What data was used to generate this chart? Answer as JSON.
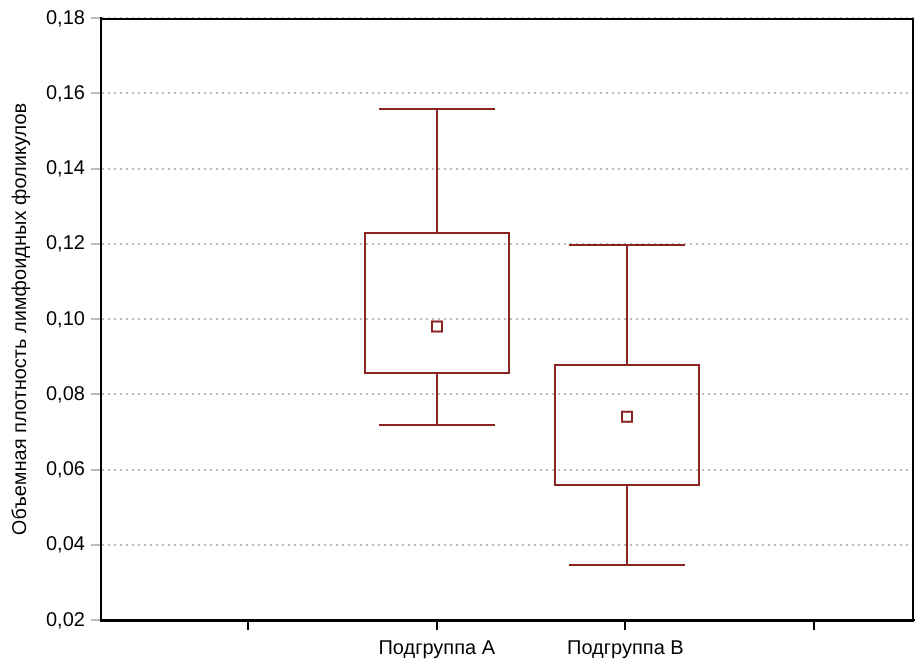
{
  "chart_data": {
    "type": "box",
    "ylabel": "Объемная плотность лимфоидных фоликулов",
    "categories": [
      "Подгруппа A",
      "Подгруппа B"
    ],
    "color": "#8b2323",
    "marker": "square",
    "grid": "y",
    "boxes": [
      {
        "low": 0.072,
        "q1": 0.086,
        "median": 0.098,
        "q3": 0.123,
        "high": 0.156
      },
      {
        "low": 0.035,
        "q1": 0.056,
        "median": 0.074,
        "q3": 0.088,
        "high": 0.12
      }
    ],
    "ylim": [
      0.02,
      0.18
    ],
    "yticks": [
      {
        "value": 0.02,
        "label": "0,02"
      },
      {
        "value": 0.04,
        "label": "0,04"
      },
      {
        "value": 0.06,
        "label": "0,06"
      },
      {
        "value": 0.08,
        "label": "0,08"
      },
      {
        "value": 0.1,
        "label": "0,10"
      },
      {
        "value": 0.12,
        "label": "0,12"
      },
      {
        "value": 0.14,
        "label": "0,14"
      },
      {
        "value": 0.16,
        "label": "0,16"
      },
      {
        "value": 0.18,
        "label": "0,18"
      }
    ]
  }
}
